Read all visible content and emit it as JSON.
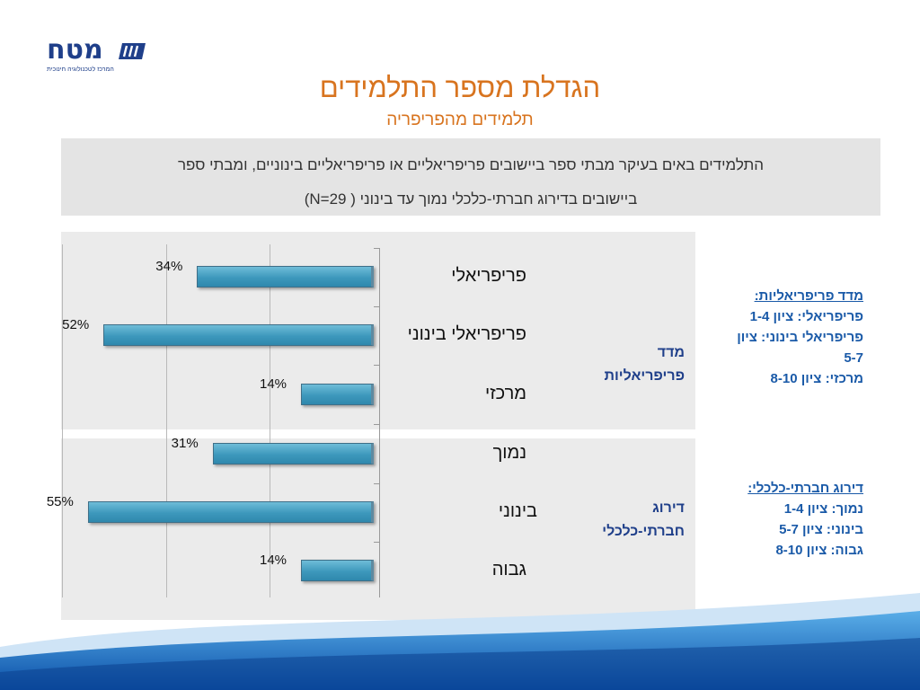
{
  "logo": {
    "word": "מטח",
    "tagline": "המרכז לטכנולוגיה חינוכית"
  },
  "title": "הגדלת מספר התלמידים",
  "subtitle": "תלמידים מהפריפריה",
  "description": {
    "line1": "התלמידים באים בעיקר מבתי ספר ביישובים פריפריאליים או פריפריאליים בינוניים, ומבתי ספר",
    "line2": "ביישובים בדירוג חברתי-כלכלי נמוך עד בינוני      ( N=29)"
  },
  "groups": [
    {
      "label_line1": "מדד",
      "label_line2": "פריפריאליות"
    },
    {
      "label_line1": "דירוג",
      "label_line2": "חברתי-כלכלי"
    }
  ],
  "legends": [
    {
      "heading": "מדד פריפריאליות:",
      "lines": [
        "פריפריאלי: ציון 1-4",
        "פריפריאלי בינוני: ציון",
        "5-7",
        "מרכזי: ציון 8-10"
      ]
    },
    {
      "heading": "דירוג חברתי-כלכלי:",
      "lines": [
        "נמוך: ציון 1-4",
        "בינוני:  ציון 5-7",
        "גבוה: ציון 8-10"
      ]
    }
  ],
  "colors": {
    "title": "#d8741f",
    "bar": "#3d98bc",
    "legend": "#1a5aa8",
    "group_label": "#1f3f8a"
  },
  "chart_data": {
    "type": "bar",
    "orientation": "horizontal",
    "direction": "right-to-left",
    "categories": [
      "פריפריאלי",
      "פריפריאלי בינוני",
      "מרכזי",
      "נמוך",
      "בינוני",
      "גבוה"
    ],
    "values": [
      34,
      52,
      14,
      31,
      55,
      14
    ],
    "value_labels": [
      "34%",
      "52%",
      "14%",
      "31%",
      "55%",
      "14%"
    ],
    "xlim": [
      0,
      60
    ],
    "grid": true
  }
}
